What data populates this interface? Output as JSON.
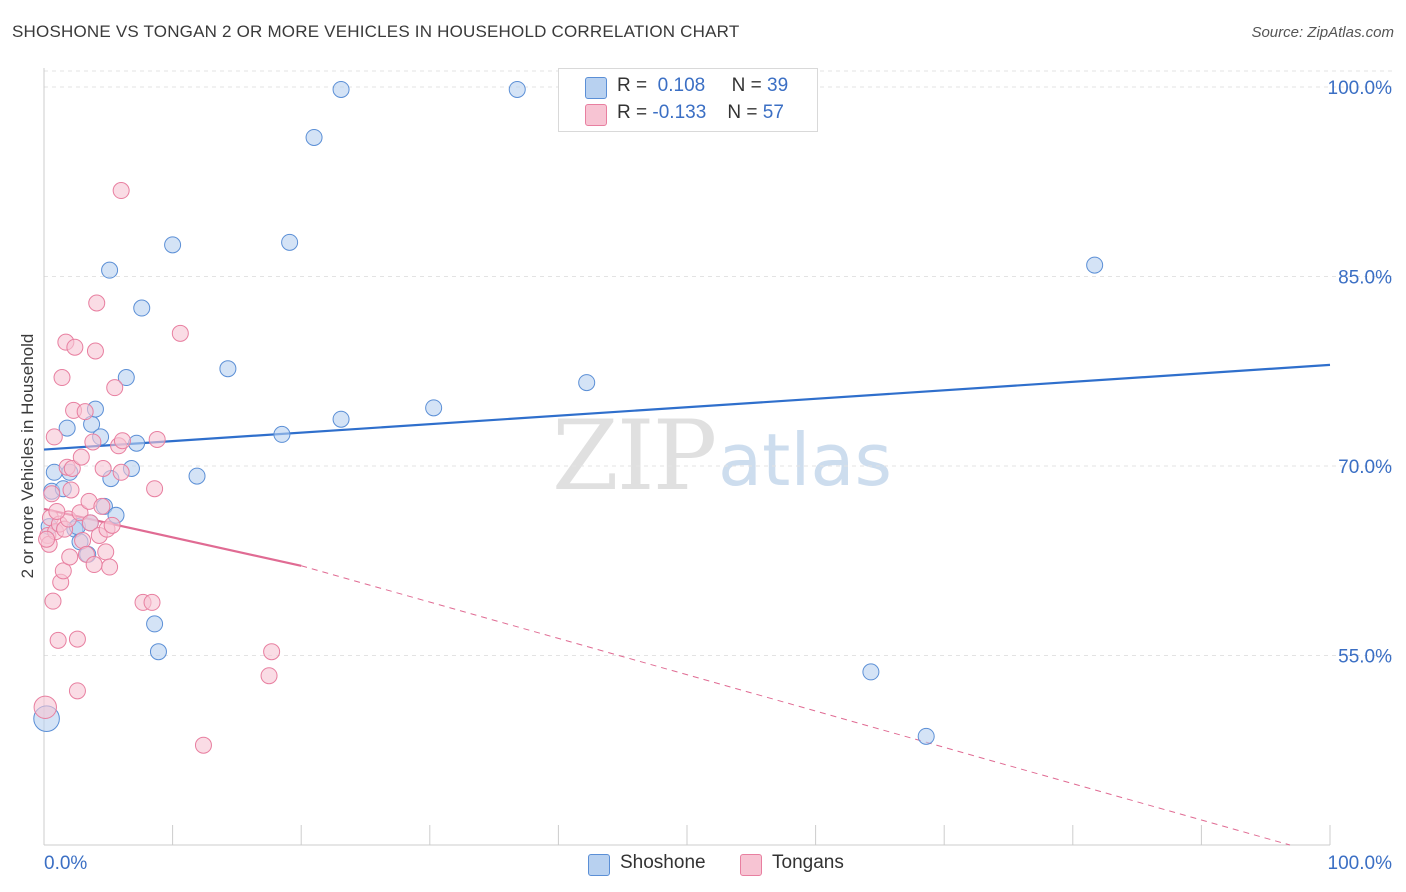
{
  "header": {
    "title": "SHOSHONE VS TONGAN 2 OR MORE VEHICLES IN HOUSEHOLD CORRELATION CHART",
    "source": "Source: ZipAtlas.com"
  },
  "colors": {
    "shoshone_fill": "#b8d1f0",
    "shoshone_stroke": "#5b8fd6",
    "shoshone_line": "#2f6fcc",
    "tongan_fill": "#f7c4d3",
    "tongan_stroke": "#e87fa0",
    "tongan_line": "#e06b93",
    "axis_label": "#3b6fc4",
    "grid": "#e3e3e3"
  },
  "legend": {
    "rows": [
      {
        "r_label": "R =",
        "r_value": "0.108",
        "n_label": "N =",
        "n_value": "39"
      },
      {
        "r_label": "R =",
        "r_value": "-0.133",
        "n_label": "N =",
        "n_value": "57"
      }
    ]
  },
  "bottom_legend": {
    "shoshone": "Shoshone",
    "tongans": "Tongans"
  },
  "watermark": {
    "zip": "ZIP",
    "atlas": "atlas"
  },
  "chart_data": {
    "type": "scatter",
    "title": "SHOSHONE VS TONGAN 2 OR MORE VEHICLES IN HOUSEHOLD CORRELATION CHART",
    "xlabel": "",
    "ylabel": "2 or more Vehicles in Household",
    "xlim": [
      0,
      100
    ],
    "ylim": [
      40,
      101.5
    ],
    "x_tick_labels": [
      "0.0%",
      "100.0%"
    ],
    "y_ticks": [
      55,
      70,
      85,
      100
    ],
    "y_tick_labels": [
      "55.0%",
      "70.0%",
      "85.0%",
      "100.0%"
    ],
    "grid": true,
    "series": [
      {
        "name": "Shoshone",
        "r": 0.108,
        "n": 39,
        "trend": {
          "x0": 0,
          "y0": 71.3,
          "x1": 100,
          "y1": 78.0
        },
        "points": [
          {
            "x": 0.2,
            "y": 50.0,
            "s": 1.6
          },
          {
            "x": 0.8,
            "y": 69.5,
            "s": 1
          },
          {
            "x": 0.6,
            "y": 68.0,
            "s": 1
          },
          {
            "x": 1.8,
            "y": 73.0,
            "s": 1
          },
          {
            "x": 1.5,
            "y": 68.2,
            "s": 1
          },
          {
            "x": 2.0,
            "y": 69.5,
            "s": 1
          },
          {
            "x": 2.4,
            "y": 65.0,
            "s": 1
          },
          {
            "x": 2.6,
            "y": 65.2,
            "s": 1
          },
          {
            "x": 2.8,
            "y": 64.0,
            "s": 1
          },
          {
            "x": 3.4,
            "y": 63.0,
            "s": 1
          },
          {
            "x": 3.6,
            "y": 65.5,
            "s": 1
          },
          {
            "x": 3.7,
            "y": 73.3,
            "s": 1
          },
          {
            "x": 4.0,
            "y": 74.5,
            "s": 1
          },
          {
            "x": 4.4,
            "y": 72.3,
            "s": 1
          },
          {
            "x": 4.7,
            "y": 66.8,
            "s": 1
          },
          {
            "x": 5.2,
            "y": 69.0,
            "s": 1
          },
          {
            "x": 5.6,
            "y": 66.1,
            "s": 1
          },
          {
            "x": 5.1,
            "y": 85.5,
            "s": 1
          },
          {
            "x": 6.4,
            "y": 77.0,
            "s": 1
          },
          {
            "x": 6.8,
            "y": 69.8,
            "s": 1
          },
          {
            "x": 7.2,
            "y": 71.8,
            "s": 1
          },
          {
            "x": 7.6,
            "y": 82.5,
            "s": 1
          },
          {
            "x": 8.6,
            "y": 57.5,
            "s": 1
          },
          {
            "x": 8.9,
            "y": 55.3,
            "s": 1
          },
          {
            "x": 10.0,
            "y": 87.5,
            "s": 1
          },
          {
            "x": 11.9,
            "y": 69.2,
            "s": 1
          },
          {
            "x": 14.3,
            "y": 77.7,
            "s": 1
          },
          {
            "x": 18.5,
            "y": 72.5,
            "s": 1
          },
          {
            "x": 19.1,
            "y": 87.7,
            "s": 1
          },
          {
            "x": 21.0,
            "y": 96.0,
            "s": 1
          },
          {
            "x": 23.1,
            "y": 73.7,
            "s": 1
          },
          {
            "x": 23.1,
            "y": 99.8,
            "s": 1
          },
          {
            "x": 30.3,
            "y": 74.6,
            "s": 1
          },
          {
            "x": 36.8,
            "y": 99.8,
            "s": 1
          },
          {
            "x": 42.2,
            "y": 76.6,
            "s": 1
          },
          {
            "x": 64.3,
            "y": 53.7,
            "s": 1
          },
          {
            "x": 68.6,
            "y": 48.6,
            "s": 1
          },
          {
            "x": 81.7,
            "y": 85.9,
            "s": 1
          },
          {
            "x": 0.4,
            "y": 65.2,
            "s": 1
          }
        ]
      },
      {
        "name": "Tongans",
        "r": -0.133,
        "n": 57,
        "trend": {
          "x0": 0,
          "y0": 66.6,
          "x1": 20,
          "y1": 62.1,
          "dashed_to": {
            "x": 100,
            "y": 40.0
          }
        },
        "points": [
          {
            "x": 0.1,
            "y": 50.9,
            "s": 1.4
          },
          {
            "x": 0.3,
            "y": 64.5,
            "s": 1
          },
          {
            "x": 0.4,
            "y": 63.8,
            "s": 1
          },
          {
            "x": 0.5,
            "y": 65.9,
            "s": 1
          },
          {
            "x": 0.6,
            "y": 67.8,
            "s": 1
          },
          {
            "x": 0.7,
            "y": 59.3,
            "s": 1
          },
          {
            "x": 0.8,
            "y": 72.3,
            "s": 1
          },
          {
            "x": 0.9,
            "y": 64.8,
            "s": 1
          },
          {
            "x": 1.1,
            "y": 56.2,
            "s": 1
          },
          {
            "x": 1.2,
            "y": 65.4,
            "s": 1
          },
          {
            "x": 1.3,
            "y": 60.8,
            "s": 1
          },
          {
            "x": 1.4,
            "y": 77.0,
            "s": 1
          },
          {
            "x": 1.5,
            "y": 61.7,
            "s": 1
          },
          {
            "x": 1.6,
            "y": 65.0,
            "s": 1
          },
          {
            "x": 1.7,
            "y": 79.8,
            "s": 1
          },
          {
            "x": 1.8,
            "y": 69.9,
            "s": 1
          },
          {
            "x": 1.9,
            "y": 65.8,
            "s": 1
          },
          {
            "x": 2.0,
            "y": 62.8,
            "s": 1
          },
          {
            "x": 2.2,
            "y": 69.8,
            "s": 1
          },
          {
            "x": 2.3,
            "y": 74.4,
            "s": 1
          },
          {
            "x": 2.4,
            "y": 79.4,
            "s": 1
          },
          {
            "x": 2.6,
            "y": 56.3,
            "s": 1
          },
          {
            "x": 2.6,
            "y": 52.2,
            "s": 1
          },
          {
            "x": 2.8,
            "y": 66.3,
            "s": 1
          },
          {
            "x": 2.9,
            "y": 70.7,
            "s": 1
          },
          {
            "x": 3.0,
            "y": 64.1,
            "s": 1
          },
          {
            "x": 3.2,
            "y": 74.3,
            "s": 1
          },
          {
            "x": 3.3,
            "y": 63.0,
            "s": 1
          },
          {
            "x": 3.5,
            "y": 67.2,
            "s": 1
          },
          {
            "x": 3.6,
            "y": 65.5,
            "s": 1
          },
          {
            "x": 3.8,
            "y": 71.9,
            "s": 1
          },
          {
            "x": 4.0,
            "y": 79.1,
            "s": 1
          },
          {
            "x": 4.1,
            "y": 82.9,
            "s": 1
          },
          {
            "x": 4.3,
            "y": 64.5,
            "s": 1
          },
          {
            "x": 4.5,
            "y": 66.8,
            "s": 1
          },
          {
            "x": 4.6,
            "y": 69.8,
            "s": 1
          },
          {
            "x": 4.8,
            "y": 63.2,
            "s": 1
          },
          {
            "x": 4.9,
            "y": 65.0,
            "s": 1
          },
          {
            "x": 5.1,
            "y": 62.0,
            "s": 1
          },
          {
            "x": 5.3,
            "y": 65.3,
            "s": 1
          },
          {
            "x": 5.5,
            "y": 76.2,
            "s": 1
          },
          {
            "x": 5.8,
            "y": 71.6,
            "s": 1
          },
          {
            "x": 6.0,
            "y": 69.5,
            "s": 1
          },
          {
            "x": 6.1,
            "y": 72.0,
            "s": 1
          },
          {
            "x": 6.0,
            "y": 91.8,
            "s": 1
          },
          {
            "x": 7.7,
            "y": 59.2,
            "s": 1
          },
          {
            "x": 8.4,
            "y": 59.2,
            "s": 1
          },
          {
            "x": 8.6,
            "y": 68.2,
            "s": 1
          },
          {
            "x": 8.8,
            "y": 72.1,
            "s": 1
          },
          {
            "x": 10.6,
            "y": 80.5,
            "s": 1
          },
          {
            "x": 12.4,
            "y": 47.9,
            "s": 1
          },
          {
            "x": 17.5,
            "y": 53.4,
            "s": 1
          },
          {
            "x": 17.7,
            "y": 55.3,
            "s": 1
          },
          {
            "x": 0.2,
            "y": 64.2,
            "s": 1
          },
          {
            "x": 1.0,
            "y": 66.4,
            "s": 1
          },
          {
            "x": 2.1,
            "y": 68.1,
            "s": 1
          },
          {
            "x": 3.9,
            "y": 62.2,
            "s": 1
          }
        ]
      }
    ]
  }
}
